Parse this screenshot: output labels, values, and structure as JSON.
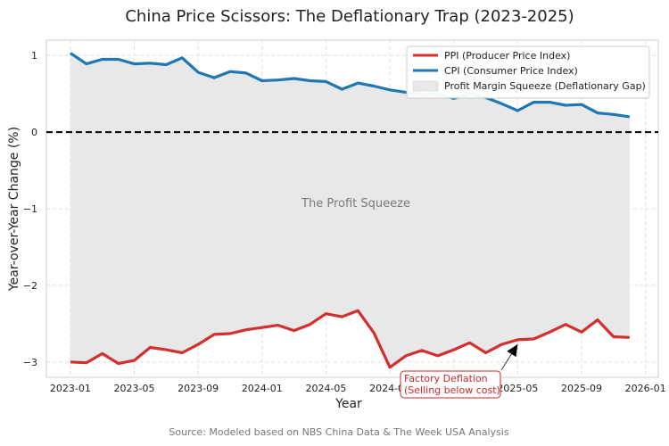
{
  "chart_data": {
    "type": "line",
    "title": "China Price Scissors: The Deflationary Trap (2023-2025)",
    "xlabel": "Year",
    "ylabel": "Year-over-Year Change (%)",
    "source": "Source: Modeled based on NBS China Data & The Week USA Analysis",
    "ylim": [
      -3.2,
      1.2
    ],
    "yticks": [
      1,
      0,
      -1,
      -2,
      -3
    ],
    "ytick_labels": [
      "1",
      "0",
      "−1",
      "−2",
      "−3"
    ],
    "xlim": [
      -1.5,
      36.8
    ],
    "xticks": [
      0,
      4,
      8,
      12,
      16,
      20,
      24,
      28,
      32,
      36
    ],
    "xtick_labels": [
      "2023-01",
      "2023-05",
      "2023-09",
      "2024-01",
      "2024-05",
      "2024-09",
      "2025-01",
      "2025-05",
      "2025-09",
      "2026-01"
    ],
    "grid": true,
    "legend_position": "top-right",
    "fill_between": {
      "label": "Profit Margin Squeeze (Deflationary Gap)",
      "color": "#e8e8e8"
    },
    "reference_line": {
      "y": 0,
      "style": "dashed",
      "color": "#000000"
    },
    "center_annotation": "The Profit Squeeze",
    "callout": {
      "lines": [
        "Factory Deflation",
        "(Selling below cost)"
      ],
      "points_to_month": 28,
      "color": "#c62828"
    },
    "series": [
      {
        "name": "PPI (Producer Price Index)",
        "color": "#d32f2f",
        "values": [
          -3.0,
          -3.01,
          -2.89,
          -3.02,
          -2.98,
          -2.81,
          -2.84,
          -2.88,
          -2.77,
          -2.64,
          -2.63,
          -2.58,
          -2.55,
          -2.52,
          -2.59,
          -2.51,
          -2.37,
          -2.41,
          -2.33,
          -2.62,
          -3.07,
          -2.92,
          -2.85,
          -2.92,
          -2.84,
          -2.75,
          -2.88,
          -2.77,
          -2.71,
          -2.7,
          -2.61,
          -2.51,
          -2.61,
          -2.45,
          -2.67,
          -2.68
        ]
      },
      {
        "name": "CPI (Consumer Price Index)",
        "color": "#1f77b4",
        "values": [
          1.03,
          0.89,
          0.95,
          0.95,
          0.89,
          0.9,
          0.88,
          0.97,
          0.78,
          0.71,
          0.79,
          0.77,
          0.67,
          0.68,
          0.7,
          0.67,
          0.66,
          0.56,
          0.64,
          0.6,
          0.55,
          0.52,
          0.49,
          0.5,
          0.44,
          0.5,
          0.45,
          0.37,
          0.28,
          0.39,
          0.39,
          0.35,
          0.36,
          0.25,
          0.23,
          0.2
        ]
      }
    ]
  }
}
